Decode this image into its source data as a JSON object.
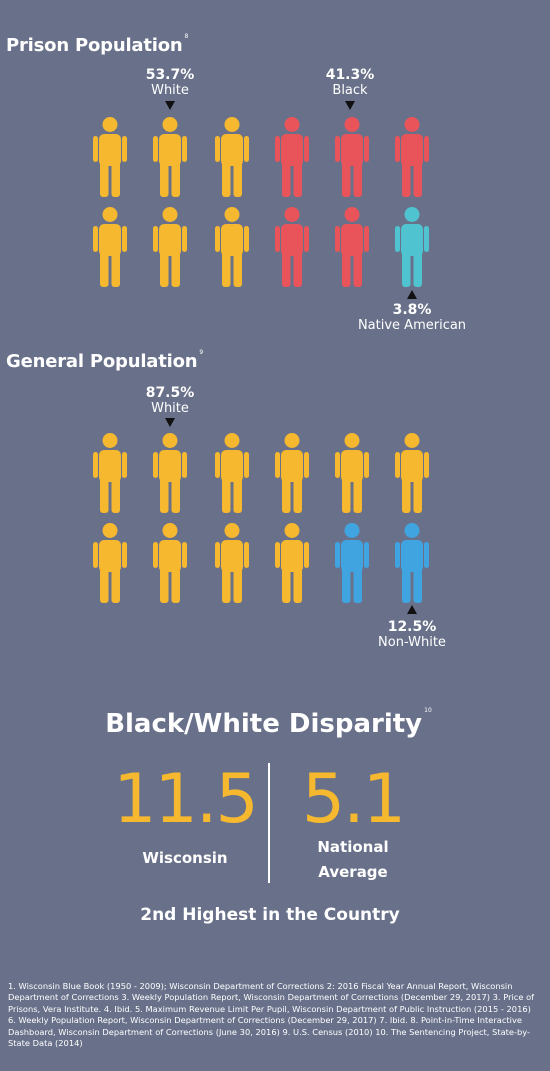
{
  "prison": {
    "title": "Prison Population",
    "footnote_ref": "8",
    "labels": [
      {
        "pct": "53.7%",
        "text": "White"
      },
      {
        "pct": "41.3%",
        "text": "Black"
      },
      {
        "pct": "3.8%",
        "text": "Native American"
      }
    ]
  },
  "general": {
    "title": "General Population",
    "footnote_ref": "9",
    "labels": [
      {
        "pct": "87.5%",
        "text": "White"
      },
      {
        "pct": "12.5%",
        "text": "Non-White"
      }
    ]
  },
  "disparity": {
    "title": "Black/White Disparity",
    "footnote_ref": "10",
    "wisconsin_value": "11.5",
    "wisconsin_label": "Wisconsin",
    "national_value": "5.1",
    "national_label_1": "National",
    "national_label_2": "Average",
    "rank_text": "2nd Highest in the Country"
  },
  "footnotes": "1. Wisconsin Blue Book (1950 - 2009); Wisconsin Department of Corrections 2: 2016 Fiscal Year Annual Report, Wisconsin Department of Corrections 3. Weekly Population Report, Wisconsin Department of Corrections (December 29, 2017) 3. Price of Prisons, Vera Institute. 4. Ibid. 5. Maximum Revenue Limit Per Pupil, Wisconsin Department of Public Instruction (2015 - 2016) 6. Weekly Population Report, Wisconsin Department of Corrections (December 29, 2017) 7. Ibid. 8. Point-in-Time Interactive Dashboard, Wisconsin Department of Corrections (June 30, 2016) 9. U.S. Census (2010) 10. The Sentencing Project, State-by-State Data (2014)",
  "colors": {
    "background": "#69718a",
    "white_group": "#f5b82e",
    "black_group": "#e8545a",
    "native_american_group": "#4fc3d0",
    "non_white_group": "#3fa4e0"
  },
  "chart_data": [
    {
      "type": "pictograph",
      "title": "Prison Population",
      "icons_total": 12,
      "series": [
        {
          "name": "White",
          "value": 53.7,
          "icons": 6,
          "color": "#f5b82e"
        },
        {
          "name": "Black",
          "value": 41.3,
          "icons": 5,
          "color": "#e8545a"
        },
        {
          "name": "Native American",
          "value": 3.8,
          "icons": 1,
          "color": "#4fc3d0"
        }
      ],
      "icon_grid": [
        [
          "white",
          "white",
          "white",
          "black",
          "black",
          "black"
        ],
        [
          "white",
          "white",
          "white",
          "black",
          "black",
          "native"
        ]
      ]
    },
    {
      "type": "pictograph",
      "title": "General Population",
      "icons_total": 12,
      "series": [
        {
          "name": "White",
          "value": 87.5,
          "icons": 10,
          "color": "#f5b82e"
        },
        {
          "name": "Non-White",
          "value": 12.5,
          "icons": 2,
          "color": "#3fa4e0"
        }
      ],
      "icon_grid": [
        [
          "white",
          "white",
          "white",
          "white",
          "white",
          "white"
        ],
        [
          "white",
          "white",
          "white",
          "white",
          "nonwhite",
          "nonwhite"
        ]
      ]
    },
    {
      "type": "comparison",
      "title": "Black/White Disparity",
      "categories": [
        "Wisconsin",
        "National Average"
      ],
      "values": [
        11.5,
        5.1
      ]
    }
  ]
}
